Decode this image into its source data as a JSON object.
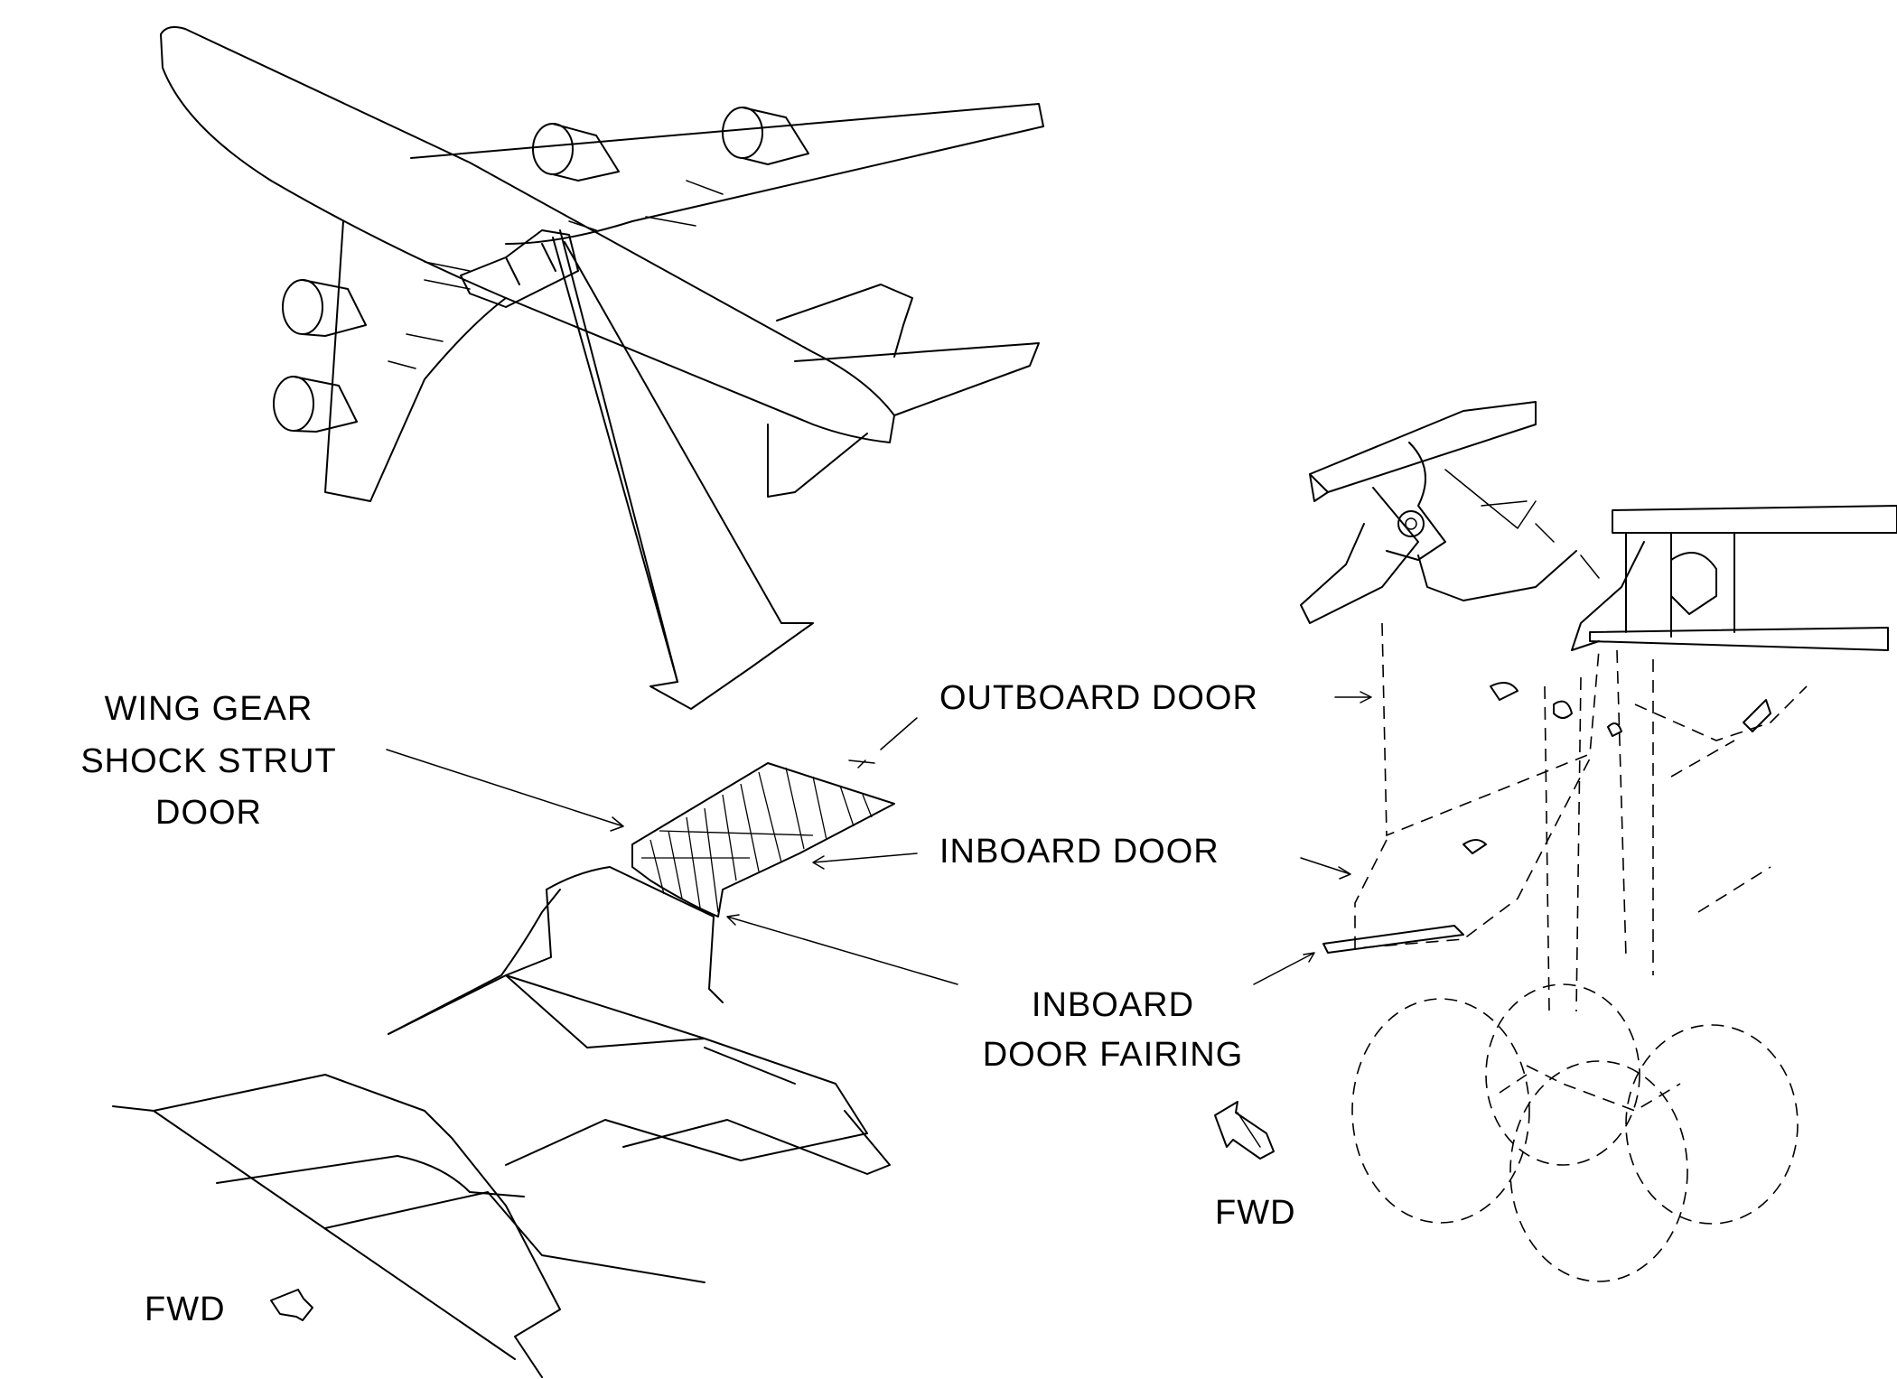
{
  "labels": {
    "wing_gear_door": [
      "WING GEAR",
      "SHOCK STRUT",
      "DOOR"
    ],
    "outboard_door": "OUTBOARD DOOR",
    "inboard_door": "INBOARD DOOR",
    "inboard_door_fairing": [
      "INBOARD",
      "DOOR FAIRING"
    ],
    "fwd_right": "FWD",
    "fwd_left": "FWD"
  },
  "colors": {
    "line": "#000000",
    "background": "#ffffff"
  }
}
